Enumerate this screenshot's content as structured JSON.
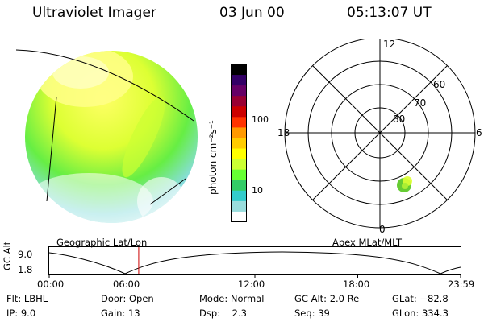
{
  "header": {
    "title": "Ultraviolet Imager",
    "date": "03 Jun 00",
    "time": "05:13:07 UT"
  },
  "colorbar": {
    "label": "photon cm⁻²s⁻¹",
    "ticks": [
      "100",
      "10"
    ],
    "colors": [
      "#000000",
      "#330066",
      "#660066",
      "#990033",
      "#cc0000",
      "#ff3300",
      "#ff9900",
      "#ffcc00",
      "#ffff00",
      "#ccff33",
      "#66ff33",
      "#33cc66",
      "#33cccc",
      "#99dddd",
      "#ffffff"
    ]
  },
  "polar_plot": {
    "mlt_labels": {
      "top": "12",
      "left": "18",
      "right": "6",
      "bottom": "0"
    },
    "lat_labels": [
      "60",
      "70",
      "80"
    ],
    "spot_color": "#66cc33"
  },
  "left_panel": {
    "label": "Geographic Lat/Lon"
  },
  "right_panel": {
    "label": "Apex MLat/MLT"
  },
  "orbit": {
    "ylabel": "GC Alt",
    "y_ticks": [
      "9.0",
      "1.8"
    ],
    "x_ticks": [
      "00:00",
      "06:00",
      "12:00",
      "18:00",
      "23:59"
    ],
    "marker_hour": 5.22,
    "marker_color": "#cc0000"
  },
  "info": {
    "flt": "Flt: LBHL",
    "ip": "IP:  9.0",
    "door": "Door: Open",
    "gain": "Gain: 13",
    "mode": "Mode: Normal",
    "dsp": "Dsp:    2.3",
    "gcalt": "GC Alt: 2.0 Re",
    "seq": "Seq: 39",
    "glat": "GLat: −82.8",
    "glon": "GLon: 334.3"
  }
}
